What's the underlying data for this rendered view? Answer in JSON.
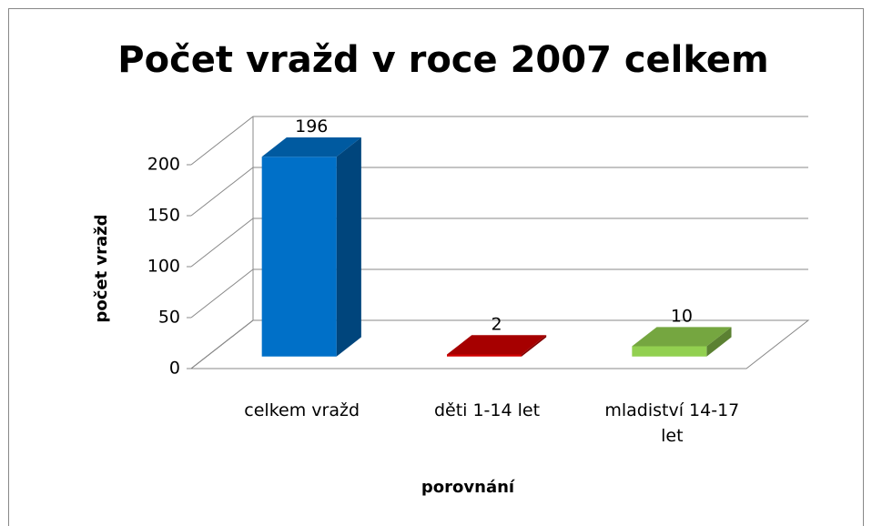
{
  "chart_data": {
    "type": "bar3d",
    "title": "Počet vražd v roce 2007 celkem",
    "x_label": "porovnání",
    "y_label": "počet vražd",
    "categories": [
      "celkem vražd",
      "děti 1-14 let",
      "mladiství 14-17 let"
    ],
    "values": [
      196,
      2,
      10
    ],
    "colors": [
      "#0070c8",
      "#d00000",
      "#92d050"
    ],
    "ylim": [
      0,
      200
    ],
    "yticks": [
      0,
      50,
      100,
      150,
      200
    ],
    "grid": true
  }
}
